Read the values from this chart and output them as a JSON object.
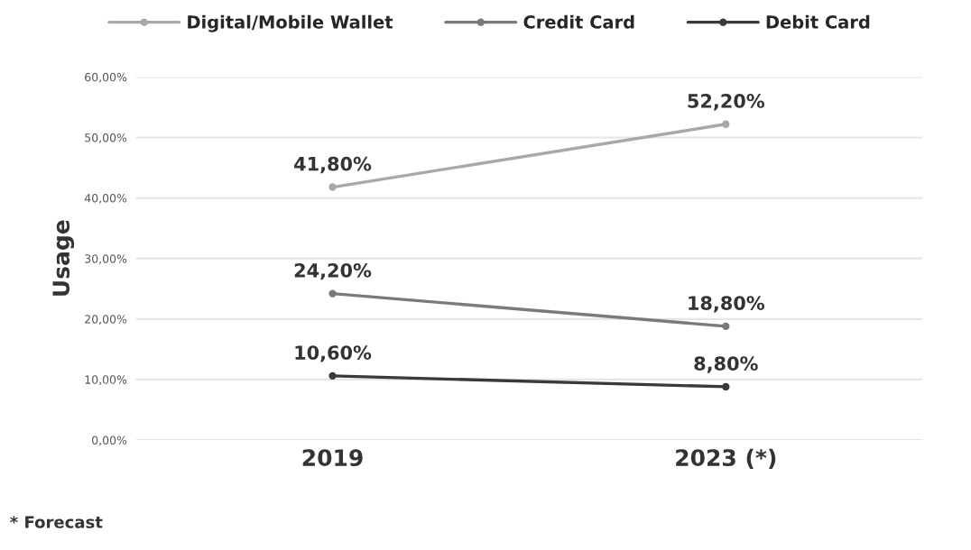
{
  "chart_data": {
    "type": "line",
    "ylabel": "Usage",
    "categories": [
      "2019",
      "2023 (*)"
    ],
    "series": [
      {
        "name": "Digital/Mobile Wallet",
        "color": "#a8a8a8",
        "values": [
          41.8,
          52.2
        ],
        "value_labels": [
          "41,80%",
          "52,20%"
        ]
      },
      {
        "name": "Credit Card",
        "color": "#7a7a7a",
        "values": [
          24.2,
          18.8
        ],
        "value_labels": [
          "24,20%",
          "18,80%"
        ]
      },
      {
        "name": "Debit Card",
        "color": "#3a3a3a",
        "values": [
          10.6,
          8.8
        ],
        "value_labels": [
          "10,60%",
          "8,80%"
        ]
      }
    ],
    "ylim": [
      0,
      60
    ],
    "yticks": [
      {
        "value": 0,
        "label": "0,00%"
      },
      {
        "value": 10,
        "label": "10,00%"
      },
      {
        "value": 20,
        "label": "20,00%"
      },
      {
        "value": 30,
        "label": "30,00%"
      },
      {
        "value": 40,
        "label": "40,00%"
      },
      {
        "value": 50,
        "label": "50,00%"
      },
      {
        "value": 60,
        "label": "60,00%"
      }
    ],
    "grid": "y",
    "legend": "top",
    "marker": "circle",
    "line_style": "solid",
    "annotations": [
      "* Forecast"
    ]
  }
}
